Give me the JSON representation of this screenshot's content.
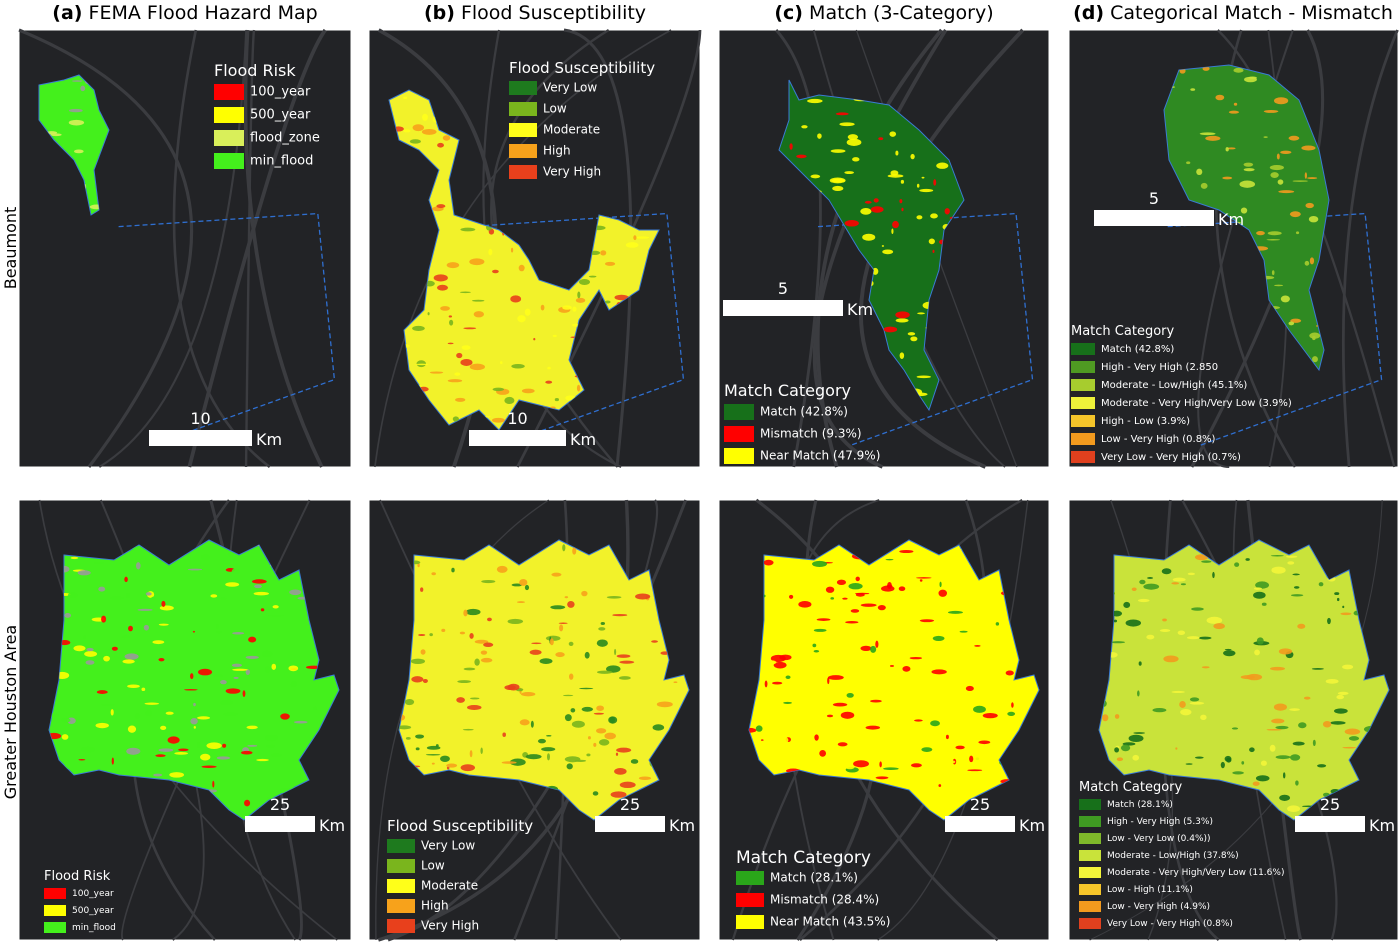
{
  "columns": [
    {
      "letter": "(a)",
      "title": "FEMA Flood Hazard Map"
    },
    {
      "letter": "(b)",
      "title": "Flood Susceptibility"
    },
    {
      "letter": "(c)",
      "title": "Match (3-Category)"
    },
    {
      "letter": "(d)",
      "title": "Categorical Match - Mismatch"
    }
  ],
  "rows": [
    "Beaumont",
    "Greater Houston Area"
  ],
  "panels": [
    {
      "scale": {
        "label": "10",
        "unit": "Km"
      },
      "legend": {
        "title": "Flood Risk",
        "items": [
          {
            "label": "100_year",
            "color": "#ff0000"
          },
          {
            "label": "500_year",
            "color": "#ffff00"
          },
          {
            "label": "flood_zone",
            "color": "#d9ef5a"
          },
          {
            "label": "min_flood",
            "color": "#44f01c"
          }
        ]
      }
    },
    {
      "scale": {
        "label": "10",
        "unit": "Km"
      },
      "legend": {
        "title": "Flood Susceptibility",
        "items": [
          {
            "label": "Very Low",
            "color": "#1e7a1e"
          },
          {
            "label": "Low",
            "color": "#7ab51d"
          },
          {
            "label": "Moderate",
            "color": "#ffff19"
          },
          {
            "label": "High",
            "color": "#f7a21b"
          },
          {
            "label": "Very High",
            "color": "#e8401c"
          }
        ]
      }
    },
    {
      "scale": {
        "label": "5",
        "unit": "Km"
      },
      "legend": {
        "title": "Match Category",
        "items": [
          {
            "label": "Match (42.8%)",
            "color": "#17701a"
          },
          {
            "label": "Mismatch (9.3%)",
            "color": "#ff0000"
          },
          {
            "label": "Near Match (47.9%)",
            "color": "#ffff00"
          }
        ]
      }
    },
    {
      "scale": {
        "label": "5",
        "unit": "Km"
      },
      "legend": {
        "title": "Match Category",
        "items": [
          {
            "label": "Match (42.8%)",
            "color": "#17701a"
          },
          {
            "label": "High - Very High (2.850",
            "color": "#4f9a22"
          },
          {
            "label": "Moderate - Low/High (45.1%)",
            "color": "#a7cc2e"
          },
          {
            "label": "Moderate - Very High/Very Low (3.9%)",
            "color": "#eef23a"
          },
          {
            "label": "High - Low (3.9%)",
            "color": "#f5c52a"
          },
          {
            "label": "Low - Very High (0.8%)",
            "color": "#f29a1e"
          },
          {
            "label": "Very Low - Very High (0.7%)",
            "color": "#e0401e"
          }
        ]
      }
    },
    {
      "scale": {
        "label": "25",
        "unit": "Km"
      },
      "legend": {
        "title": "Flood Risk",
        "items": [
          {
            "label": "100_year",
            "color": "#ff0000"
          },
          {
            "label": "500_year",
            "color": "#ffff00"
          },
          {
            "label": "min_flood",
            "color": "#44f01c"
          }
        ]
      }
    },
    {
      "scale": {
        "label": "25",
        "unit": "Km"
      },
      "legend": {
        "title": "Flood Susceptibility",
        "items": [
          {
            "label": "Very Low",
            "color": "#1e7a1e"
          },
          {
            "label": "Low",
            "color": "#7ab51d"
          },
          {
            "label": "Moderate",
            "color": "#ffff19"
          },
          {
            "label": "High",
            "color": "#f7a21b"
          },
          {
            "label": "Very High",
            "color": "#e8401c"
          }
        ]
      }
    },
    {
      "scale": {
        "label": "25",
        "unit": "Km"
      },
      "legend": {
        "title": "Match Category",
        "items": [
          {
            "label": "Match (28.1%)",
            "color": "#2aa61a"
          },
          {
            "label": "Mismatch (28.4%)",
            "color": "#ff0000"
          },
          {
            "label": "Near Match (43.5%)",
            "color": "#ffff00"
          }
        ]
      }
    },
    {
      "scale": {
        "label": "25",
        "unit": "Km"
      },
      "legend": {
        "title": "Match Category",
        "items": [
          {
            "label": "Match (28.1%)",
            "color": "#17701a"
          },
          {
            "label": "High - Very High (5.3%)",
            "color": "#3f9a22"
          },
          {
            "label": "Low - Very Low (0.4%))",
            "color": "#7fb82a"
          },
          {
            "label": "Moderate - Low/High (37.8%)",
            "color": "#c9e33a"
          },
          {
            "label": "Moderate - Very High/Very Low (11.6%)",
            "color": "#f3f53a"
          },
          {
            "label": "Low - High (11.1%)",
            "color": "#f5c52a"
          },
          {
            "label": "Low - Very High (4.9%)",
            "color": "#f29a1e"
          },
          {
            "label": "Very Low - Very High (0.8%)",
            "color": "#e0401e"
          }
        ]
      }
    }
  ]
}
